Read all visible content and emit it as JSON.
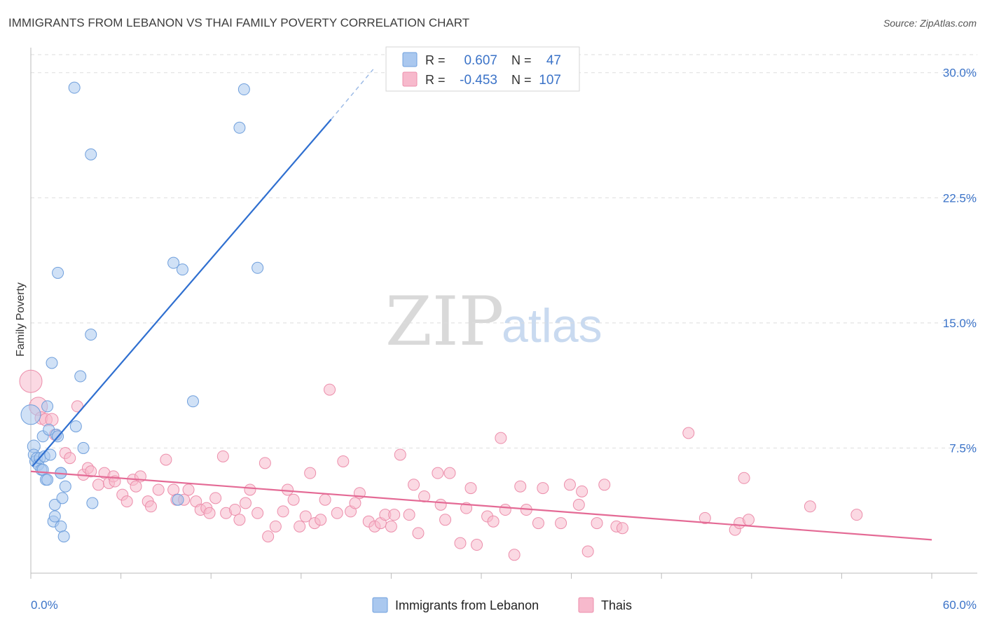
{
  "title": "IMMIGRANTS FROM LEBANON VS THAI FAMILY POVERTY CORRELATION CHART",
  "source": "Source: ZipAtlas.com",
  "watermark": {
    "zip": "ZIP",
    "atlas": "atlas"
  },
  "legend": {
    "r_label": "R =",
    "n_label": "N =",
    "rows": [
      {
        "series": "lebanon",
        "r": "0.607",
        "n": "47"
      },
      {
        "series": "thais",
        "r": "-0.453",
        "n": "107"
      }
    ]
  },
  "colors": {
    "lebanon_fill": "#aac8ef",
    "lebanon_stroke": "#6f9fdc",
    "lebanon_line": "#2f6fd0",
    "thais_fill": "#f7b9cc",
    "thais_stroke": "#ec8eab",
    "thais_line": "#e46a95",
    "axis_text": "#3b73c8",
    "grid": "#dddddd"
  },
  "chart_data": {
    "type": "scatter",
    "title": "IMMIGRANTS FROM LEBANON VS THAI FAMILY POVERTY CORRELATION CHART",
    "xlabel": "",
    "ylabel": "Family Poverty",
    "xlim": [
      0,
      60
    ],
    "ylim": [
      0,
      31.5
    ],
    "x_tick_labels": [
      "0.0%",
      "60.0%"
    ],
    "y_ticks": [
      7.5,
      15.0,
      22.5,
      30.0
    ],
    "y_tick_labels": [
      "7.5%",
      "15.0%",
      "22.5%",
      "30.0%"
    ],
    "grid": "horizontal dashed",
    "legend_position": "top-center",
    "series": [
      {
        "name": "Immigrants from Lebanon",
        "key": "lebanon",
        "r": 0.607,
        "n": 47,
        "trend": {
          "x": [
            0.1,
            20.0
          ],
          "y": [
            6.4,
            27.2
          ],
          "dashed_to": [
            22.8,
            30.2
          ]
        },
        "points": [
          [
            0.0,
            9.5,
            14
          ],
          [
            0.2,
            7.6,
            9
          ],
          [
            0.2,
            7.1,
            8
          ],
          [
            0.3,
            6.7,
            8
          ],
          [
            0.4,
            6.9,
            8
          ],
          [
            0.5,
            6.5,
            8
          ],
          [
            0.6,
            6.9,
            8
          ],
          [
            0.7,
            6.2,
            8
          ],
          [
            0.8,
            8.2,
            8
          ],
          [
            0.8,
            6.2,
            8
          ],
          [
            0.9,
            7.0,
            8
          ],
          [
            1.0,
            5.6,
            8
          ],
          [
            1.1,
            10.0,
            8
          ],
          [
            1.1,
            5.6,
            8
          ],
          [
            1.2,
            8.6,
            8
          ],
          [
            1.3,
            7.1,
            8
          ],
          [
            1.4,
            12.6,
            8
          ],
          [
            1.5,
            3.1,
            8
          ],
          [
            1.6,
            3.4,
            8
          ],
          [
            1.6,
            4.1,
            8
          ],
          [
            1.7,
            8.3,
            8
          ],
          [
            1.8,
            18.0,
            8
          ],
          [
            1.8,
            8.2,
            8
          ],
          [
            2.0,
            6.0,
            8
          ],
          [
            2.0,
            6.0,
            8
          ],
          [
            2.0,
            2.8,
            8
          ],
          [
            2.1,
            4.5,
            8
          ],
          [
            2.2,
            2.2,
            8
          ],
          [
            2.3,
            5.2,
            8
          ],
          [
            2.9,
            29.1,
            8
          ],
          [
            3.0,
            8.8,
            8
          ],
          [
            3.3,
            11.8,
            8
          ],
          [
            3.5,
            7.5,
            8
          ],
          [
            4.0,
            25.1,
            8
          ],
          [
            4.0,
            14.3,
            8
          ],
          [
            4.1,
            4.2,
            8
          ],
          [
            9.5,
            18.6,
            8
          ],
          [
            9.8,
            4.4,
            8
          ],
          [
            10.1,
            18.2,
            8
          ],
          [
            10.8,
            10.3,
            8
          ],
          [
            13.9,
            26.7,
            8
          ],
          [
            14.2,
            29.0,
            8
          ],
          [
            15.1,
            18.3,
            8
          ]
        ]
      },
      {
        "name": "Thais",
        "key": "thais",
        "r": -0.453,
        "n": 107,
        "trend": {
          "x": [
            0.0,
            60.0
          ],
          "y": [
            6.1,
            2.0
          ]
        },
        "points": [
          [
            0.0,
            11.5,
            16
          ],
          [
            0.5,
            10.0,
            13
          ],
          [
            0.7,
            9.3,
            9
          ],
          [
            1.0,
            9.2,
            9
          ],
          [
            1.4,
            9.2,
            9
          ],
          [
            1.6,
            8.3,
            8
          ],
          [
            2.3,
            7.2,
            8
          ],
          [
            2.6,
            6.9,
            8
          ],
          [
            3.1,
            10.0,
            8
          ],
          [
            3.5,
            5.9,
            8
          ],
          [
            3.8,
            6.3,
            8
          ],
          [
            4.0,
            6.1,
            8
          ],
          [
            4.5,
            5.3,
            8
          ],
          [
            4.9,
            6.0,
            8
          ],
          [
            5.2,
            5.4,
            8
          ],
          [
            5.5,
            5.8,
            8
          ],
          [
            5.6,
            5.5,
            8
          ],
          [
            6.1,
            4.7,
            8
          ],
          [
            6.4,
            4.3,
            8
          ],
          [
            6.8,
            5.6,
            8
          ],
          [
            7.0,
            5.2,
            8
          ],
          [
            7.3,
            5.8,
            8
          ],
          [
            7.8,
            4.3,
            8
          ],
          [
            8.0,
            4.0,
            8
          ],
          [
            8.5,
            5.0,
            8
          ],
          [
            9.0,
            6.8,
            8
          ],
          [
            9.5,
            5.0,
            8
          ],
          [
            9.7,
            4.4,
            8
          ],
          [
            10.2,
            4.4,
            8
          ],
          [
            10.5,
            5.0,
            8
          ],
          [
            11.0,
            4.3,
            8
          ],
          [
            11.3,
            3.8,
            8
          ],
          [
            11.7,
            3.9,
            8
          ],
          [
            11.9,
            3.6,
            8
          ],
          [
            12.3,
            4.5,
            8
          ],
          [
            12.8,
            7.0,
            8
          ],
          [
            13.0,
            3.6,
            8
          ],
          [
            13.6,
            3.8,
            8
          ],
          [
            13.9,
            3.2,
            8
          ],
          [
            14.3,
            4.2,
            8
          ],
          [
            14.6,
            5.0,
            8
          ],
          [
            15.1,
            3.6,
            8
          ],
          [
            15.6,
            6.6,
            8
          ],
          [
            15.8,
            2.2,
            8
          ],
          [
            16.3,
            2.8,
            8
          ],
          [
            16.8,
            3.7,
            8
          ],
          [
            17.1,
            5.0,
            8
          ],
          [
            17.5,
            4.4,
            8
          ],
          [
            17.9,
            2.8,
            8
          ],
          [
            18.3,
            3.4,
            8
          ],
          [
            18.6,
            6.0,
            8
          ],
          [
            18.9,
            3.0,
            8
          ],
          [
            19.3,
            3.2,
            8
          ],
          [
            19.6,
            4.4,
            8
          ],
          [
            19.9,
            11.0,
            8
          ],
          [
            20.4,
            3.6,
            8
          ],
          [
            20.8,
            6.7,
            8
          ],
          [
            21.3,
            3.7,
            8
          ],
          [
            21.6,
            4.2,
            8
          ],
          [
            21.9,
            4.8,
            8
          ],
          [
            22.5,
            3.1,
            8
          ],
          [
            22.9,
            2.8,
            8
          ],
          [
            23.3,
            3.0,
            8
          ],
          [
            23.6,
            3.5,
            8
          ],
          [
            24.0,
            2.8,
            8
          ],
          [
            24.2,
            3.5,
            8
          ],
          [
            24.6,
            7.1,
            8
          ],
          [
            25.2,
            3.5,
            8
          ],
          [
            25.5,
            5.3,
            8
          ],
          [
            25.8,
            2.4,
            8
          ],
          [
            26.2,
            4.6,
            8
          ],
          [
            27.1,
            6.0,
            8
          ],
          [
            27.3,
            4.1,
            8
          ],
          [
            27.6,
            3.2,
            8
          ],
          [
            27.9,
            6.0,
            8
          ],
          [
            28.6,
            1.8,
            8
          ],
          [
            29.0,
            3.9,
            8
          ],
          [
            29.3,
            5.1,
            8
          ],
          [
            29.7,
            1.7,
            8
          ],
          [
            30.4,
            3.4,
            8
          ],
          [
            30.8,
            3.1,
            8
          ],
          [
            31.3,
            8.1,
            8
          ],
          [
            31.6,
            3.8,
            8
          ],
          [
            32.2,
            1.1,
            8
          ],
          [
            32.6,
            5.2,
            8
          ],
          [
            33.0,
            3.8,
            8
          ],
          [
            33.8,
            3.0,
            8
          ],
          [
            34.1,
            5.1,
            8
          ],
          [
            35.3,
            3.0,
            8
          ],
          [
            35.9,
            5.3,
            8
          ],
          [
            36.5,
            4.1,
            8
          ],
          [
            36.7,
            4.9,
            8
          ],
          [
            37.1,
            1.3,
            8
          ],
          [
            37.7,
            3.0,
            8
          ],
          [
            38.2,
            5.3,
            8
          ],
          [
            39.0,
            2.8,
            8
          ],
          [
            39.4,
            2.7,
            8
          ],
          [
            43.8,
            8.4,
            8
          ],
          [
            44.9,
            3.3,
            8
          ],
          [
            46.9,
            2.6,
            8
          ],
          [
            47.2,
            3.0,
            8
          ],
          [
            47.5,
            5.7,
            8
          ],
          [
            47.8,
            3.2,
            8
          ],
          [
            51.9,
            4.0,
            8
          ],
          [
            55.0,
            3.5,
            8
          ]
        ]
      }
    ]
  }
}
